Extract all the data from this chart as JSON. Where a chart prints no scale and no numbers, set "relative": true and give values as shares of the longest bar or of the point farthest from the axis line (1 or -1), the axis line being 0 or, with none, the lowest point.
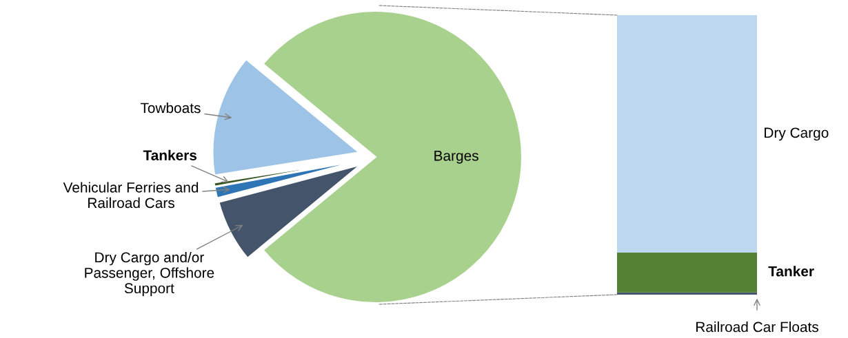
{
  "chart_data": [
    {
      "type": "pie",
      "categories": [
        "Barges",
        "Towboats",
        "Tankers",
        "Vehicular Ferries and Railroad Cars",
        "Dry Cargo and/or Passenger, Offshore Support"
      ],
      "values": [
        78,
        13.5,
        0.4,
        1.2,
        6.9
      ],
      "colors": [
        "#a9d18e",
        "#9dc3e6",
        "#375623",
        "#2e75b6",
        "#44546a"
      ]
    },
    {
      "type": "bar",
      "stacked": true,
      "relative": true,
      "categories": [
        null
      ],
      "series": [
        {
          "name": "Railroad Car Floats",
          "color": "#44546a",
          "values": [
            0.008
          ]
        },
        {
          "name": "Tanker",
          "color": "#548235",
          "values": [
            0.142
          ]
        },
        {
          "name": "Dry Cargo",
          "color": "#bdd7ee",
          "values": [
            0.85
          ]
        }
      ]
    }
  ]
}
